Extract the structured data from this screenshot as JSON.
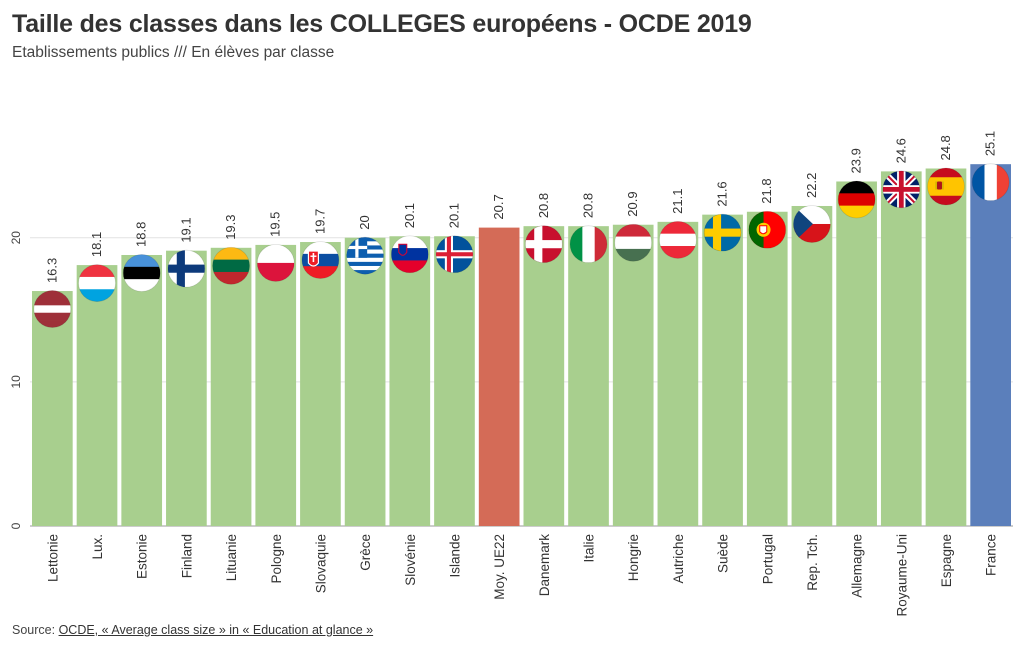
{
  "header": {
    "title": "Taille des classes dans les COLLEGES européens - OCDE 2019",
    "subtitle": "Etablissements publics /// En élèves par classe"
  },
  "source": {
    "prefix": "Source: ",
    "link_label": "OCDE, « Average class size » in « Education at glance »"
  },
  "colors": {
    "default_bar": "#a8cf8e",
    "average_bar": "#d46b57",
    "france_bar": "#5b7fbb"
  },
  "chart_data": {
    "type": "bar",
    "title": "Taille des classes dans les COLLEGES européens - OCDE 2019",
    "subtitle": "Etablissements publics /// En élèves par classe",
    "categories": [
      "Lettonie",
      "Lux.",
      "Estonie",
      "Finland",
      "Lituanie",
      "Pologne",
      "Slovaquie",
      "Grèce",
      "Slovénie",
      "Islande",
      "Moy. UE22",
      "Danemark",
      "Italie",
      "Hongrie",
      "Autriche",
      "Suède",
      "Portugal",
      "Rep. Tch.",
      "Allemagne",
      "Royaume-Uni",
      "Espagne",
      "France"
    ],
    "values": [
      16.3,
      18.1,
      18.8,
      19.1,
      19.3,
      19.5,
      19.7,
      20,
      20.1,
      20.1,
      20.7,
      20.8,
      20.8,
      20.9,
      21.1,
      21.6,
      21.8,
      22.2,
      23.9,
      24.6,
      24.8,
      25.1
    ],
    "value_labels": [
      "16.3",
      "18.1",
      "18.8",
      "19.1",
      "19.3",
      "19.5",
      "19.7",
      "20",
      "20.1",
      "20.1",
      "20.7",
      "20.8",
      "20.8",
      "20.9",
      "21.1",
      "21.6",
      "21.8",
      "22.2",
      "23.9",
      "24.6",
      "24.8",
      "25.1"
    ],
    "flags": [
      "latvia-flag",
      "luxembourg-flag",
      "estonia-flag",
      "finland-flag",
      "lithuania-flag",
      "poland-flag",
      "slovakia-flag",
      "greece-flag",
      "slovenia-flag",
      "iceland-flag",
      "",
      "denmark-flag",
      "italy-flag",
      "hungary-flag",
      "austria-flag",
      "sweden-flag",
      "portugal-flag",
      "czechia-flag",
      "germany-flag",
      "uk-flag",
      "spain-flag",
      "france-flag"
    ],
    "highlight": {
      "Moy. UE22": "average",
      "France": "france"
    },
    "yticks": [
      0,
      10,
      20
    ],
    "ylim": [
      0,
      26.5
    ],
    "xlabel": "",
    "ylabel": "",
    "grid": true,
    "legend": "none"
  }
}
